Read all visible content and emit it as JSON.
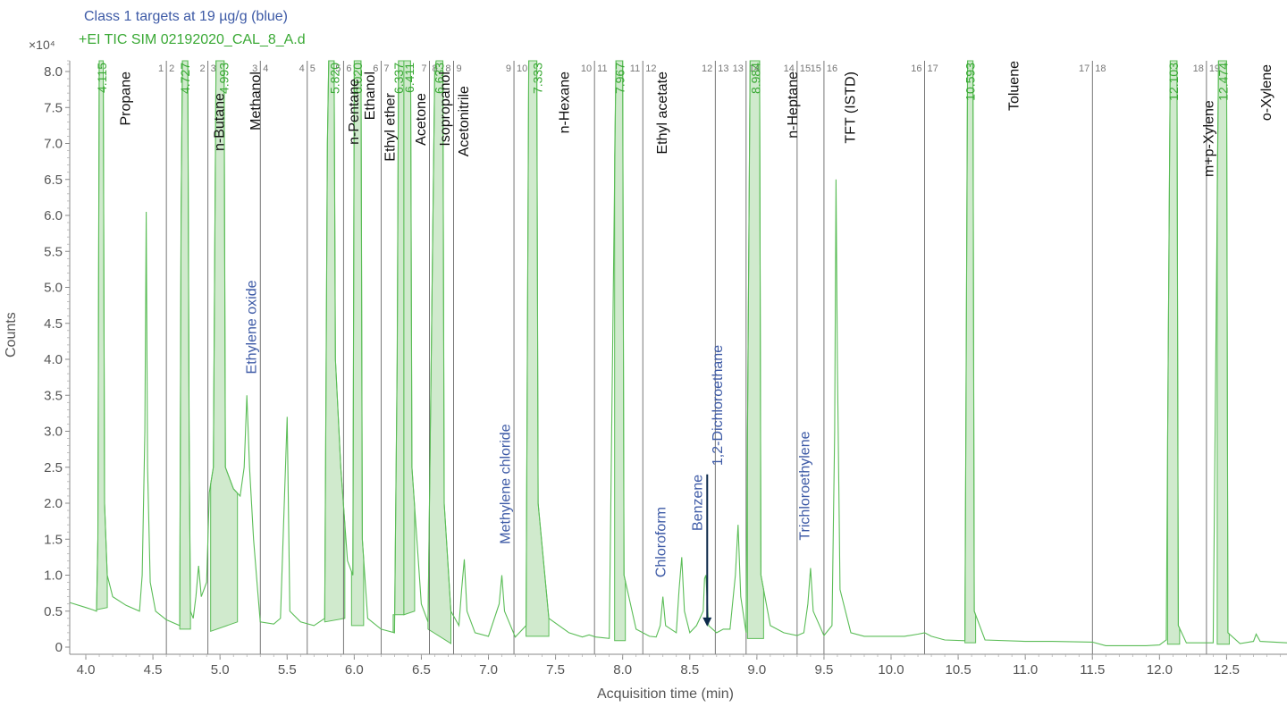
{
  "header": {
    "line1": "Class 1 targets at 19 µg/g (blue)",
    "line2": "+EI TIC SIM 02192020_CAL_8_A.d"
  },
  "chart_data": {
    "type": "line",
    "title": "",
    "xlabel": "Acquisition time (min)",
    "ylabel": "Counts",
    "y_multiplier": "×10⁴",
    "xlim": [
      3.88,
      12.95
    ],
    "ylim": [
      0,
      8.2
    ],
    "x_ticks": [
      "4.0",
      "4.5",
      "5.0",
      "5.5",
      "6.0",
      "6.5",
      "7.0",
      "7.5",
      "8.0",
      "8.5",
      "9.0",
      "9.5",
      "10.0",
      "10.5",
      "11.0",
      "11.5",
      "12.0",
      "12.5"
    ],
    "y_ticks": [
      "0",
      "0.5",
      "1.0",
      "1.5",
      "2.0",
      "2.5",
      "3.0",
      "3.5",
      "4.0",
      "4.5",
      "5.0",
      "5.5",
      "6.0",
      "6.5",
      "7.0",
      "7.5",
      "8.0"
    ],
    "colors": {
      "trace": "#5bbd57",
      "fill": "#c8e6c4",
      "blue_label": "#3d5aa6",
      "black_label": "#111111",
      "segment_line": "#555555",
      "arrow": "#0d2a4a"
    },
    "series": [
      {
        "points": [
          [
            3.88,
            0.62
          ],
          [
            4.0,
            0.55
          ],
          [
            4.05,
            0.52
          ],
          [
            4.08,
            0.5
          ],
          [
            4.09,
            1.5
          ],
          [
            4.1,
            8.5
          ],
          [
            4.13,
            8.5
          ],
          [
            4.14,
            2.0
          ],
          [
            4.16,
            1.0
          ],
          [
            4.2,
            0.7
          ],
          [
            4.3,
            0.58
          ],
          [
            4.4,
            0.5
          ],
          [
            4.42,
            1.0
          ],
          [
            4.44,
            3.0
          ],
          [
            4.45,
            6.05
          ],
          [
            4.46,
            2.5
          ],
          [
            4.48,
            0.9
          ],
          [
            4.52,
            0.5
          ],
          [
            4.6,
            0.38
          ],
          [
            4.7,
            0.3
          ],
          [
            4.71,
            6.0
          ],
          [
            4.72,
            8.5
          ],
          [
            4.76,
            8.5
          ],
          [
            4.77,
            3.0
          ],
          [
            4.78,
            0.5
          ],
          [
            4.8,
            0.4
          ],
          [
            4.82,
            0.7
          ],
          [
            4.84,
            1.13
          ],
          [
            4.86,
            0.7
          ],
          [
            4.9,
            0.9
          ],
          [
            4.92,
            2.15
          ],
          [
            4.95,
            2.5
          ],
          [
            4.97,
            8.5
          ],
          [
            5.03,
            8.5
          ],
          [
            5.04,
            2.5
          ],
          [
            5.1,
            2.2
          ],
          [
            5.15,
            2.1
          ],
          [
            5.18,
            2.5
          ],
          [
            5.2,
            3.5
          ],
          [
            5.22,
            2.5
          ],
          [
            5.25,
            1.5
          ],
          [
            5.28,
            0.8
          ],
          [
            5.3,
            0.35
          ],
          [
            5.4,
            0.32
          ],
          [
            5.45,
            0.4
          ],
          [
            5.5,
            3.2
          ],
          [
            5.52,
            0.5
          ],
          [
            5.6,
            0.35
          ],
          [
            5.7,
            0.3
          ],
          [
            5.78,
            0.4
          ],
          [
            5.8,
            7.0
          ],
          [
            5.81,
            8.5
          ],
          [
            5.85,
            8.5
          ],
          [
            5.86,
            4.0
          ],
          [
            5.9,
            2.5
          ],
          [
            5.95,
            1.2
          ],
          [
            5.99,
            1.0
          ],
          [
            6.0,
            8.5
          ],
          [
            6.05,
            8.5
          ],
          [
            6.06,
            1.5
          ],
          [
            6.1,
            0.4
          ],
          [
            6.2,
            0.25
          ],
          [
            6.3,
            0.2
          ],
          [
            6.32,
            4.0
          ],
          [
            6.33,
            8.5
          ],
          [
            6.42,
            8.5
          ],
          [
            6.43,
            2.5
          ],
          [
            6.5,
            0.6
          ],
          [
            6.55,
            0.35
          ],
          [
            6.6,
            8.0
          ],
          [
            6.61,
            8.5
          ],
          [
            6.66,
            8.5
          ],
          [
            6.67,
            2.0
          ],
          [
            6.72,
            0.5
          ],
          [
            6.78,
            0.3
          ],
          [
            6.8,
            0.8
          ],
          [
            6.82,
            1.22
          ],
          [
            6.84,
            0.5
          ],
          [
            6.9,
            0.2
          ],
          [
            7.0,
            0.15
          ],
          [
            7.08,
            0.6
          ],
          [
            7.1,
            1.0
          ],
          [
            7.12,
            0.5
          ],
          [
            7.2,
            0.14
          ],
          [
            7.28,
            0.3
          ],
          [
            7.3,
            8.5
          ],
          [
            7.36,
            8.5
          ],
          [
            7.37,
            2.0
          ],
          [
            7.45,
            0.4
          ],
          [
            7.6,
            0.2
          ],
          [
            7.7,
            0.14
          ],
          [
            7.75,
            0.17
          ],
          [
            7.8,
            0.14
          ],
          [
            7.9,
            0.12
          ],
          [
            7.95,
            8.5
          ],
          [
            8.0,
            8.5
          ],
          [
            8.01,
            1.0
          ],
          [
            8.1,
            0.25
          ],
          [
            8.2,
            0.15
          ],
          [
            8.25,
            0.14
          ],
          [
            8.28,
            0.3
          ],
          [
            8.3,
            0.7
          ],
          [
            8.32,
            0.3
          ],
          [
            8.4,
            0.2
          ],
          [
            8.42,
            0.8
          ],
          [
            8.44,
            1.25
          ],
          [
            8.46,
            0.5
          ],
          [
            8.5,
            0.2
          ],
          [
            8.55,
            0.3
          ],
          [
            8.6,
            0.5
          ],
          [
            8.61,
            0.95
          ],
          [
            8.62,
            1.0
          ],
          [
            8.64,
            0.3
          ],
          [
            8.7,
            0.2
          ],
          [
            8.75,
            0.25
          ],
          [
            8.8,
            0.25
          ],
          [
            8.84,
            1.0
          ],
          [
            8.86,
            1.7
          ],
          [
            8.88,
            0.7
          ],
          [
            8.92,
            0.2
          ],
          [
            8.95,
            8.5
          ],
          [
            9.02,
            8.5
          ],
          [
            9.03,
            1.0
          ],
          [
            9.1,
            0.3
          ],
          [
            9.2,
            0.2
          ],
          [
            9.3,
            0.16
          ],
          [
            9.35,
            0.2
          ],
          [
            9.38,
            0.6
          ],
          [
            9.4,
            1.1
          ],
          [
            9.42,
            0.5
          ],
          [
            9.5,
            0.16
          ],
          [
            9.56,
            0.3
          ],
          [
            9.58,
            3.0
          ],
          [
            9.59,
            6.5
          ],
          [
            9.6,
            4.0
          ],
          [
            9.62,
            0.8
          ],
          [
            9.7,
            0.2
          ],
          [
            9.8,
            0.15
          ],
          [
            10.0,
            0.15
          ],
          [
            10.1,
            0.15
          ],
          [
            10.2,
            0.18
          ],
          [
            10.25,
            0.2
          ],
          [
            10.3,
            0.15
          ],
          [
            10.4,
            0.1
          ],
          [
            10.55,
            0.09
          ],
          [
            10.57,
            8.5
          ],
          [
            10.61,
            8.5
          ],
          [
            10.62,
            0.5
          ],
          [
            10.7,
            0.1
          ],
          [
            11.0,
            0.08
          ],
          [
            11.2,
            0.08
          ],
          [
            11.5,
            0.07
          ],
          [
            11.6,
            0.02
          ],
          [
            11.9,
            0.02
          ],
          [
            12.0,
            0.03
          ],
          [
            12.05,
            0.1
          ],
          [
            12.08,
            8.5
          ],
          [
            12.13,
            8.5
          ],
          [
            12.14,
            0.3
          ],
          [
            12.2,
            0.06
          ],
          [
            12.3,
            0.06
          ],
          [
            12.4,
            0.06
          ],
          [
            12.44,
            8.5
          ],
          [
            12.5,
            8.5
          ],
          [
            12.51,
            0.2
          ],
          [
            12.6,
            0.05
          ],
          [
            12.7,
            0.08
          ],
          [
            12.72,
            0.18
          ],
          [
            12.75,
            0.08
          ],
          [
            12.95,
            0.06
          ]
        ]
      }
    ],
    "filled_peaks": [
      {
        "label": "4.115",
        "range": [
          4.08,
          4.16
        ],
        "floor": [
          0.52,
          0.55
        ]
      },
      {
        "label": "4.727",
        "range": [
          4.7,
          4.78
        ],
        "floor": [
          0.25,
          0.25
        ]
      },
      {
        "label": "4.993",
        "range": [
          4.93,
          5.13
        ],
        "floor": [
          0.22,
          0.35
        ]
      },
      {
        "label": "5.820",
        "range": [
          5.78,
          5.93
        ],
        "floor": [
          0.35,
          0.4
        ]
      },
      {
        "label": "6.020",
        "range": [
          5.98,
          6.07
        ],
        "floor": [
          0.3,
          0.3
        ]
      },
      {
        "label": "6.337",
        "range": [
          6.29,
          6.37
        ],
        "floor": [
          0.45,
          0.45
        ]
      },
      {
        "label": "6.411",
        "range": [
          6.37,
          6.45
        ],
        "floor": [
          0.45,
          0.5
        ]
      },
      {
        "label": "6.633",
        "range": [
          6.55,
          6.72
        ],
        "floor": [
          0.25,
          0.05
        ]
      },
      {
        "label": "7.333",
        "range": [
          7.28,
          7.45
        ],
        "floor": [
          0.15,
          0.15
        ]
      },
      {
        "label": "7.967",
        "range": [
          7.94,
          8.02
        ],
        "floor": [
          0.09,
          0.09
        ]
      },
      {
        "label": "8.984",
        "range": [
          8.93,
          9.05
        ],
        "floor": [
          0.12,
          0.12
        ]
      },
      {
        "label": "10.593",
        "range": [
          10.55,
          10.63
        ],
        "floor": [
          0.06,
          0.06
        ]
      },
      {
        "label": "12.103",
        "range": [
          12.06,
          12.15
        ],
        "floor": [
          0.04,
          0.04
        ]
      },
      {
        "label": "12.474",
        "range": [
          12.43,
          12.52
        ],
        "floor": [
          0.04,
          0.04
        ]
      }
    ],
    "segment_boundaries": [
      {
        "x": 4.6,
        "left": "1",
        "right": "2"
      },
      {
        "x": 4.91,
        "left": "2",
        "right": "3"
      },
      {
        "x": 5.3,
        "left": "3",
        "right": "4"
      },
      {
        "x": 5.65,
        "left": "4",
        "right": "5"
      },
      {
        "x": 5.92,
        "left": "5",
        "right": "6"
      },
      {
        "x": 6.2,
        "left": "6",
        "right": "7"
      },
      {
        "x": 6.56,
        "left": "7",
        "right": "8"
      },
      {
        "x": 6.74,
        "left": "8",
        "right": "9"
      },
      {
        "x": 7.19,
        "left": "9",
        "right": "10"
      },
      {
        "x": 7.79,
        "left": "10",
        "right": "11"
      },
      {
        "x": 8.15,
        "left": "11",
        "right": "12"
      },
      {
        "x": 8.69,
        "left": "12",
        "right": "13"
      },
      {
        "x": 8.92,
        "left": "13",
        "right": "14"
      },
      {
        "x": 9.3,
        "left": "14",
        "right": "15"
      },
      {
        "x": 9.5,
        "left": "15",
        "right": "16"
      },
      {
        "x": 10.25,
        "left": "16",
        "right": "17"
      },
      {
        "x": 11.5,
        "left": "17",
        "right": "18"
      },
      {
        "x": 12.35,
        "left": "18",
        "right": "19"
      }
    ],
    "compound_labels": [
      {
        "text": "Propane",
        "x": 4.29,
        "y_top": 8.0,
        "color": "black"
      },
      {
        "text": "n-Butane",
        "x": 4.99,
        "y_top": 7.7,
        "color": "black"
      },
      {
        "text": "Methanol",
        "x": 5.26,
        "y_top": 8.0,
        "color": "black"
      },
      {
        "text": "n-Pentane",
        "x": 5.99,
        "y_top": 7.9,
        "color": "black"
      },
      {
        "text": "Ethanol",
        "x": 6.11,
        "y_top": 8.0,
        "color": "black"
      },
      {
        "text": "Ethyl ether",
        "x": 6.26,
        "y_top": 7.7,
        "color": "black"
      },
      {
        "text": "Acetone",
        "x": 6.49,
        "y_top": 7.7,
        "color": "black"
      },
      {
        "text": "Isopropanol",
        "x": 6.67,
        "y_top": 8.0,
        "color": "black"
      },
      {
        "text": "Acetonitrile",
        "x": 6.81,
        "y_top": 7.8,
        "color": "black"
      },
      {
        "text": "n-Hexane",
        "x": 7.56,
        "y_top": 8.0,
        "color": "black"
      },
      {
        "text": "Ethyl acetate",
        "x": 8.29,
        "y_top": 8.0,
        "color": "black"
      },
      {
        "text": "n-Heptane",
        "x": 9.26,
        "y_top": 8.0,
        "color": "black"
      },
      {
        "text": "TFT (ISTD)",
        "x": 9.69,
        "y_top": 8.0,
        "color": "black"
      },
      {
        "text": "Toluene",
        "x": 10.91,
        "y_top": 8.2,
        "color": "black"
      },
      {
        "text": "m+p-Xylene",
        "x": 12.36,
        "y_top": 7.6,
        "color": "black"
      },
      {
        "text": "o-Xylene",
        "x": 12.79,
        "y_top": 8.1,
        "color": "black"
      },
      {
        "text": "Ethylene oxide",
        "x": 5.23,
        "y_top": 5.1,
        "color": "blue"
      },
      {
        "text": "Methylene chloride",
        "x": 7.12,
        "y_top": 3.1,
        "color": "blue"
      },
      {
        "text": "Chloroform",
        "x": 8.28,
        "y_top": 1.95,
        "color": "blue"
      },
      {
        "text": "Benzene",
        "x": 8.55,
        "y_top": 2.4,
        "color": "blue"
      },
      {
        "text": "1,2-Dichloroethane",
        "x": 8.7,
        "y_top": 4.2,
        "color": "blue"
      },
      {
        "text": "Trichloroethylene",
        "x": 9.35,
        "y_top": 3.0,
        "color": "blue"
      }
    ],
    "arrow": {
      "x": 8.63,
      "from": 2.4,
      "to": 0.3
    },
    "grid": false
  }
}
